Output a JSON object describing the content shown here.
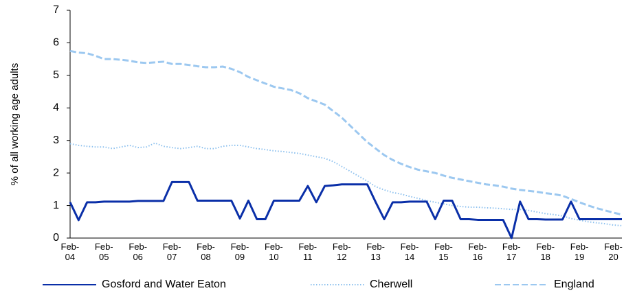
{
  "chart_data": {
    "type": "line",
    "y_label": "% of all working age adults",
    "ylim": [
      0,
      7
    ],
    "yticks": [
      0,
      1,
      2,
      3,
      4,
      5,
      6,
      7
    ],
    "categories": [
      "Feb-04",
      null,
      null,
      null,
      "Feb-05",
      null,
      null,
      null,
      "Feb-06",
      null,
      null,
      null,
      "Feb-07",
      null,
      null,
      null,
      "Feb-08",
      null,
      null,
      null,
      "Feb-09",
      null,
      null,
      null,
      "Feb-10",
      null,
      null,
      null,
      "Feb-11",
      null,
      null,
      null,
      "Feb-12",
      null,
      null,
      null,
      "Feb-13",
      null,
      null,
      null,
      "Feb-14",
      null,
      null,
      null,
      "Feb-15",
      null,
      null,
      null,
      "Feb-16",
      null,
      null,
      null,
      "Feb-17",
      null,
      null,
      null,
      "Feb-18",
      null,
      null,
      null,
      "Feb-19",
      null,
      null,
      null,
      "Feb-20",
      null
    ],
    "series": [
      {
        "name": "Gosford and Water Eaton",
        "color": "#0a2fa8",
        "style": "solid",
        "values": [
          1.1,
          0.55,
          1.1,
          1.1,
          1.12,
          1.12,
          1.12,
          1.12,
          1.14,
          1.14,
          1.14,
          1.14,
          1.72,
          1.72,
          1.72,
          1.15,
          1.15,
          1.15,
          1.15,
          1.15,
          0.6,
          1.15,
          0.58,
          0.58,
          1.15,
          1.15,
          1.15,
          1.15,
          1.6,
          1.1,
          1.6,
          1.62,
          1.65,
          1.65,
          1.65,
          1.65,
          1.1,
          0.58,
          1.1,
          1.1,
          1.12,
          1.12,
          1.12,
          0.58,
          1.15,
          1.15,
          0.58,
          0.58,
          0.56,
          0.56,
          0.56,
          0.56,
          0,
          1.12,
          0.58,
          0.58,
          0.57,
          0.57,
          0.57,
          1.12,
          0.58,
          0.58,
          0.58,
          0.58,
          0.58,
          0.58
        ]
      },
      {
        "name": "Cherwell",
        "color": "#8cc0ee",
        "style": "dotted",
        "values": [
          2.9,
          2.85,
          2.82,
          2.8,
          2.8,
          2.75,
          2.8,
          2.85,
          2.78,
          2.8,
          2.92,
          2.82,
          2.78,
          2.75,
          2.78,
          2.82,
          2.75,
          2.75,
          2.82,
          2.85,
          2.85,
          2.8,
          2.75,
          2.72,
          2.68,
          2.66,
          2.63,
          2.6,
          2.55,
          2.5,
          2.45,
          2.35,
          2.2,
          2.05,
          1.9,
          1.75,
          1.58,
          1.48,
          1.4,
          1.35,
          1.28,
          1.22,
          1.15,
          1.1,
          1.05,
          1.0,
          0.97,
          0.95,
          0.95,
          0.93,
          0.92,
          0.9,
          0.88,
          0.88,
          0.85,
          0.8,
          0.75,
          0.72,
          0.68,
          0.6,
          0.55,
          0.5,
          0.47,
          0.44,
          0.4,
          0.38
        ]
      },
      {
        "name": "England",
        "color": "#9cc8f0",
        "style": "dashed",
        "values": [
          5.75,
          5.7,
          5.68,
          5.6,
          5.5,
          5.5,
          5.48,
          5.45,
          5.4,
          5.38,
          5.4,
          5.42,
          5.35,
          5.35,
          5.32,
          5.28,
          5.25,
          5.25,
          5.27,
          5.2,
          5.1,
          4.95,
          4.85,
          4.75,
          4.65,
          4.6,
          4.55,
          4.45,
          4.3,
          4.2,
          4.1,
          3.9,
          3.7,
          3.45,
          3.2,
          2.95,
          2.75,
          2.55,
          2.4,
          2.28,
          2.18,
          2.1,
          2.05,
          2.0,
          1.92,
          1.85,
          1.8,
          1.75,
          1.7,
          1.65,
          1.62,
          1.58,
          1.52,
          1.48,
          1.45,
          1.42,
          1.38,
          1.35,
          1.3,
          1.2,
          1.1,
          1.0,
          0.92,
          0.85,
          0.78,
          0.72
        ]
      }
    ]
  }
}
